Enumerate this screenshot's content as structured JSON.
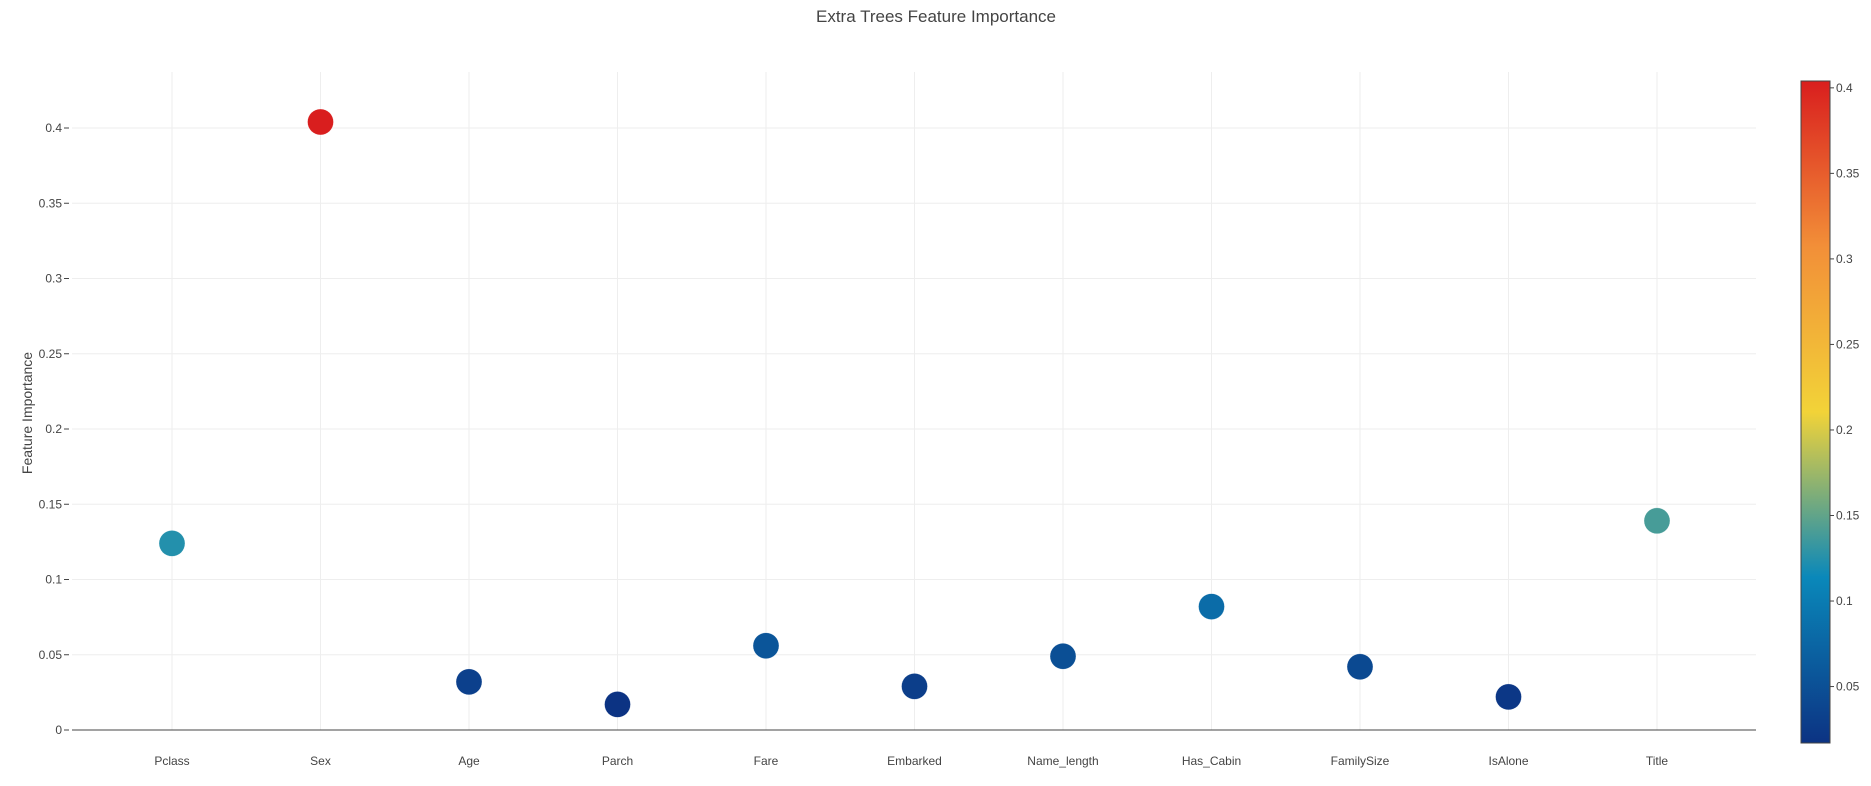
{
  "chart_data": {
    "type": "scatter",
    "title": "Extra Trees Feature Importance",
    "xlabel": "",
    "ylabel": "Feature Importance",
    "categories": [
      "Pclass",
      "Sex",
      "Age",
      "Parch",
      "Fare",
      "Embarked",
      "Name_length",
      "Has_Cabin",
      "FamilySize",
      "IsAlone",
      "Title"
    ],
    "values": [
      0.124,
      0.404,
      0.032,
      0.017,
      0.056,
      0.029,
      0.049,
      0.082,
      0.042,
      0.022,
      0.139
    ],
    "ylim": [
      0,
      0.4
    ],
    "y_ticks": [
      0,
      0.05,
      0.1,
      0.15,
      0.2,
      0.25,
      0.3,
      0.35,
      0.4
    ],
    "y_tick_labels": [
      "0",
      "0.05",
      "0.1",
      "0.15",
      "0.2",
      "0.25",
      "0.3",
      "0.35",
      "0.4"
    ],
    "grid": true,
    "colorscale": "Portland",
    "colorscale_colors": [
      "#0c3383",
      "#0a88ba",
      "#f2d338",
      "#f28f38",
      "#d91e1e"
    ],
    "colorbar": {
      "range": [
        0.017,
        0.404
      ],
      "ticks": [
        0.05,
        0.1,
        0.15,
        0.2,
        0.25,
        0.3,
        0.35,
        0.4
      ],
      "tick_labels": [
        "0.05",
        "0.1",
        "0.15",
        "0.2",
        "0.25",
        "0.3",
        "0.35",
        "0.4"
      ],
      "placement": "right"
    }
  }
}
